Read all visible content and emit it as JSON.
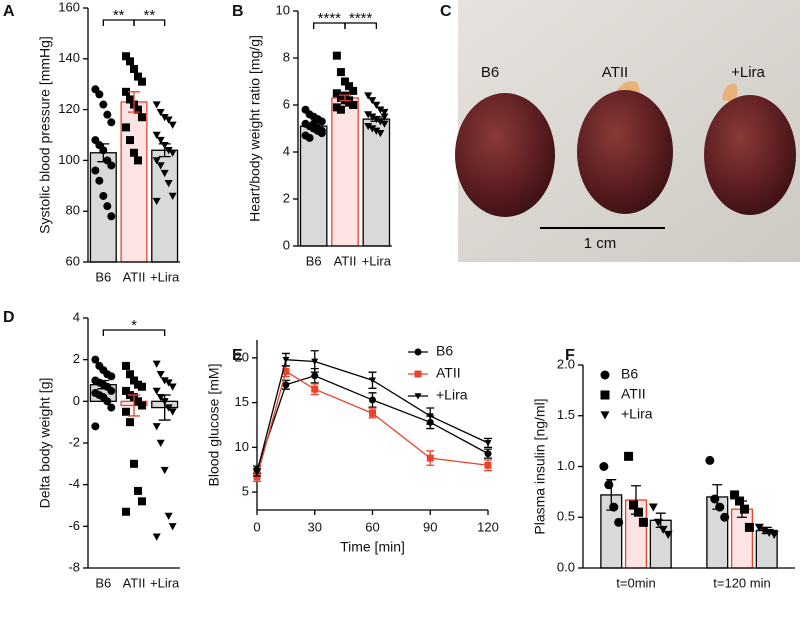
{
  "chart_data": [
    {
      "type": "bar_dot",
      "panel": "A",
      "ylabel": "Systolic blood pressure [mmHg]",
      "categories": [
        "B6",
        "ATII",
        "+Lira"
      ],
      "values": [
        103,
        123,
        104
      ],
      "errors": [
        3.5,
        4,
        2.5
      ],
      "points": [
        [
          128,
          126,
          122,
          118,
          115,
          108,
          106,
          104,
          100,
          98,
          96,
          92,
          86,
          82,
          78
        ],
        [
          141,
          139,
          136,
          133,
          131,
          127,
          124,
          122,
          120,
          117,
          113,
          108,
          103,
          100
        ],
        [
          122,
          119,
          117,
          116,
          114,
          110,
          108,
          106,
          104,
          103,
          100,
          98,
          95,
          91,
          86,
          84
        ]
      ],
      "bar_colors": [
        "#d9d9d9",
        "#fde4e4",
        "#d9d9d9"
      ],
      "edge_colors": [
        "#000000",
        "#e8442c",
        "#000000"
      ],
      "markers": [
        "circle",
        "square",
        "triangle-down"
      ],
      "ylim": [
        60,
        160
      ],
      "yticks": [
        60,
        80,
        100,
        120,
        140,
        160
      ],
      "comparisons": [
        {
          "label": "**",
          "between": [
            "B6",
            "ATII"
          ]
        },
        {
          "label": "**",
          "between": [
            "ATII",
            "+Lira"
          ]
        }
      ]
    },
    {
      "type": "bar_dot",
      "panel": "B",
      "ylabel": "Heart/body weight ratio [mg/g]",
      "categories": [
        "B6",
        "ATII",
        "+Lira"
      ],
      "values": [
        5.1,
        6.3,
        5.4
      ],
      "errors": [
        0.08,
        0.12,
        0.09
      ],
      "points": [
        [
          5.8,
          5.6,
          5.5,
          5.4,
          5.3,
          5.2,
          5.1,
          5.0,
          4.9,
          4.8,
          4.7,
          4.6,
          5.2,
          5.0,
          4.9
        ],
        [
          8.1,
          7.4,
          7.0,
          6.8,
          6.6,
          6.5,
          6.3,
          6.2,
          6.1,
          6.0,
          5.9,
          5.8,
          6.4,
          6.2,
          6.0
        ],
        [
          6.4,
          6.2,
          6.0,
          5.8,
          5.7,
          5.6,
          5.5,
          5.4,
          5.3,
          5.2,
          5.1,
          5.0,
          4.9,
          4.8,
          5.5
        ]
      ],
      "bar_colors": [
        "#d9d9d9",
        "#fde4e4",
        "#d9d9d9"
      ],
      "edge_colors": [
        "#000000",
        "#e8442c",
        "#000000"
      ],
      "markers": [
        "circle",
        "square",
        "triangle-down"
      ],
      "ylim": [
        0,
        10
      ],
      "yticks": [
        0,
        2,
        4,
        6,
        8,
        10
      ],
      "comparisons": [
        {
          "label": "****",
          "between": [
            "B6",
            "ATII"
          ]
        },
        {
          "label": "****",
          "between": [
            "ATII",
            "+Lira"
          ]
        }
      ]
    },
    {
      "type": "bar_dot",
      "panel": "D",
      "ylabel": "Delta body weight [g]",
      "categories": [
        "B6",
        "ATII",
        "+Lira"
      ],
      "values": [
        0.8,
        -0.2,
        -0.3
      ],
      "errors": [
        0.2,
        0.5,
        0.6
      ],
      "points": [
        [
          2.0,
          1.7,
          1.5,
          1.3,
          1.2,
          1.0,
          0.9,
          0.8,
          0.7,
          0.5,
          0.4,
          0.3,
          0.2,
          0,
          -0.3,
          -1.2
        ],
        [
          1.7,
          1.3,
          1.0,
          0.8,
          0.7,
          0.5,
          0.3,
          0.2,
          0,
          -0.2,
          -0.5,
          -1.0,
          -3.0,
          -4.3,
          -4.8,
          -5.3
        ],
        [
          1.8,
          1.3,
          1.0,
          0.9,
          0.7,
          0.5,
          0.2,
          0,
          -0.3,
          -0.5,
          -1.2,
          -2.0,
          -3.3,
          -5.5,
          -6.0,
          -6.5
        ]
      ],
      "bar_colors": [
        "#d9d9d9",
        "#fde4e4",
        "#d9d9d9"
      ],
      "edge_colors": [
        "#000000",
        "#e8442c",
        "#000000"
      ],
      "markers": [
        "circle",
        "square",
        "triangle-down"
      ],
      "ylim": [
        -8,
        4
      ],
      "yticks": [
        -8,
        -6,
        -4,
        -2,
        0,
        2,
        4
      ],
      "comparisons": [
        {
          "label": "*",
          "between": [
            "B6",
            "+Lira"
          ]
        }
      ]
    },
    {
      "type": "line",
      "panel": "E",
      "xlabel": "Time [min]",
      "ylabel": "Blood glucose [mM]",
      "x": [
        0,
        15,
        30,
        60,
        90,
        120
      ],
      "xlim": [
        0,
        120
      ],
      "xticks": [
        0,
        30,
        60,
        90,
        120
      ],
      "ylim": [
        3,
        22
      ],
      "yticks": [
        5,
        10,
        15,
        20
      ],
      "legend": "upper right",
      "series": [
        {
          "name": "B6",
          "color": "#000000",
          "marker": "circle",
          "values": [
            7.5,
            17,
            18,
            15.3,
            12.8,
            9.3
          ],
          "errors": [
            0.4,
            0.5,
            0.8,
            0.8,
            0.7,
            0.5
          ]
        },
        {
          "name": "ATII",
          "color": "#e8442c",
          "marker": "square",
          "values": [
            6.7,
            18.5,
            16.5,
            13.8,
            8.8,
            8
          ],
          "errors": [
            0.5,
            0.6,
            0.6,
            0.5,
            0.8,
            0.6
          ]
        },
        {
          "name": "+Lira",
          "color": "#000000",
          "marker": "triangle-down",
          "values": [
            7.2,
            19.8,
            19.6,
            17.5,
            13.5,
            10.5
          ],
          "errors": [
            0.4,
            0.7,
            1.2,
            0.9,
            0.9,
            0.5
          ]
        }
      ]
    },
    {
      "type": "grouped_bar",
      "panel": "F",
      "ylabel": "Plasma insulin [ng/ml]",
      "categories": [
        "t=0min",
        "t=120 min"
      ],
      "legend": "upper left",
      "ylim": [
        0,
        2
      ],
      "yticks": [
        {
          "value": 0,
          "label": "0.0"
        },
        0.5,
        {
          "value": 1,
          "label": "1.0"
        },
        1.5,
        {
          "value": 2,
          "label": "2.0"
        }
      ],
      "series": [
        {
          "name": "B6",
          "color": "#d9d9d9",
          "edge": "#000000",
          "marker": "circle",
          "values": [
            0.72,
            0.7
          ],
          "errors": [
            0.15,
            0.12
          ],
          "points": [
            [
              1.0,
              0.82,
              0.6,
              0.45
            ],
            [
              1.06,
              0.68,
              0.6,
              0.5
            ]
          ]
        },
        {
          "name": "ATII",
          "color": "#fde4e4",
          "edge": "#e8442c",
          "marker": "square",
          "values": [
            0.67,
            0.58
          ],
          "errors": [
            0.14,
            0.08
          ],
          "points": [
            [
              1.1,
              0.62,
              0.55,
              0.45
            ],
            [
              0.72,
              0.66,
              0.58,
              0.4
            ]
          ]
        },
        {
          "name": "+Lira",
          "color": "#d9d9d9",
          "edge": "#000000",
          "marker": "triangle-down",
          "values": [
            0.47,
            0.37
          ],
          "errors": [
            0.07,
            0.03
          ],
          "points": [
            [
              0.6,
              0.45,
              0.38,
              0.33
            ],
            [
              0.4,
              0.37,
              0.35,
              0.33
            ]
          ]
        }
      ]
    }
  ],
  "photo": {
    "panel": "C",
    "labels": [
      "B6",
      "ATII",
      "+Lira"
    ],
    "scale_bar": "1 cm"
  }
}
